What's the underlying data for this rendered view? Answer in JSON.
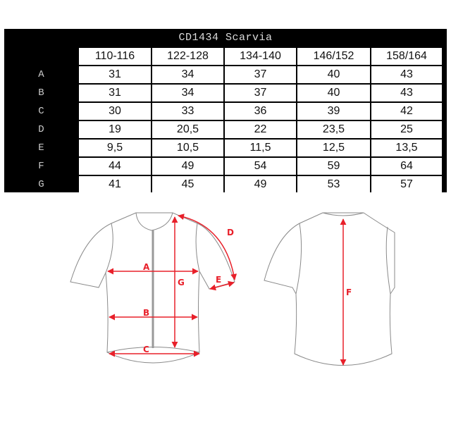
{
  "title": "CD1434 Scarvia",
  "sizes": [
    "110-116",
    "122-128",
    "134-140",
    "146/152",
    "158/164"
  ],
  "rows": [
    {
      "label": "A",
      "values": [
        "31",
        "34",
        "37",
        "40",
        "43"
      ]
    },
    {
      "label": "B",
      "values": [
        "31",
        "34",
        "37",
        "40",
        "43"
      ]
    },
    {
      "label": "C",
      "values": [
        "30",
        "33",
        "36",
        "39",
        "42"
      ]
    },
    {
      "label": "D",
      "values": [
        "19",
        "20,5",
        "22",
        "23,5",
        "25"
      ]
    },
    {
      "label": "E",
      "values": [
        "9,5",
        "10,5",
        "11,5",
        "12,5",
        "13,5"
      ]
    },
    {
      "label": "F",
      "values": [
        "44",
        "49",
        "54",
        "59",
        "64"
      ]
    },
    {
      "label": "G",
      "values": [
        "41",
        "45",
        "49",
        "53",
        "57"
      ]
    }
  ],
  "diagram": {
    "measure_labels": {
      "A": "A",
      "B": "B",
      "C": "C",
      "D": "D",
      "E": "E",
      "F": "F",
      "G": "G"
    },
    "arrow_color": "#e8202a",
    "outline_color": "#8a8a8a"
  }
}
